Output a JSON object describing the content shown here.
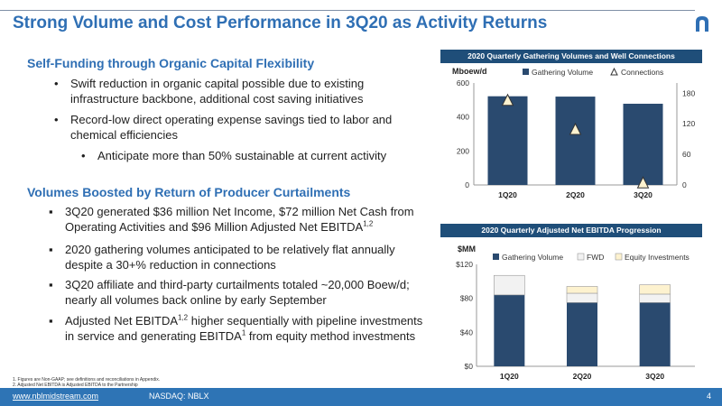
{
  "header": {
    "title": "Strong Volume and Cost Performance in 3Q20 as Activity Returns"
  },
  "section1": {
    "heading": "Self-Funding through Organic Capital Flexibility",
    "bullets": [
      "Swift reduction in organic capital possible due to existing infrastructure backbone, additional cost saving initiatives",
      "Record-low direct operating expense savings tied to labor and chemical efficiencies"
    ],
    "sub_bullet": "Anticipate more than 50% sustainable at current activity"
  },
  "section2": {
    "heading": "Volumes Boosted by Return of Producer Curtailments",
    "b1": {
      "text": "3Q20 generated $36 million Net Income, $72 million Net Cash from Operating Activities and $96 Million Adjusted Net EBITDA",
      "sup": "1,2"
    },
    "b2": {
      "text": "2020 gathering volumes anticipated to be relatively flat annually despite a 30+% reduction in connections"
    },
    "b3": {
      "text": "3Q20 affiliate and third-party curtailments totaled ~20,000 Boew/d; nearly all volumes back online by early September"
    },
    "b4": {
      "pre": "Adjusted Net EBITDA",
      "sup1": "1,2",
      "mid": " higher sequentially with pipeline investments in service and generating EBITDA",
      "sup2": "1",
      "post": " from equity method investments"
    }
  },
  "footnotes": [
    "1.      Figures are Non-GAAP; see definitions and reconciliations in Appendix.",
    "2.      Adjusted Net EBITDA is Adjusted EBITDA to the Partnership"
  ],
  "footer": {
    "url": "www.nblmidstream.com",
    "ticker": "NASDAQ: NBLX",
    "page": "4"
  },
  "colors": {
    "title": "#2f6fb4",
    "navy": "#2a4a6f",
    "header_bar": "#1f4e79",
    "fwd": "#f2f2f2",
    "equity": "#fdf2cf",
    "footer": "#2e74b5"
  },
  "chart_data": [
    {
      "type": "bar",
      "title": "2020 Quarterly Gathering Volumes and Well Connections",
      "ylabel": "Mboew/d",
      "categories": [
        "1Q20",
        "2Q20",
        "3Q20"
      ],
      "series": [
        {
          "name": "Gathering Volume",
          "type": "bar",
          "axis": "left",
          "values": [
            522,
            520,
            478
          ]
        },
        {
          "name": "Connections",
          "type": "scatter",
          "marker": "triangle",
          "axis": "right",
          "values": [
            165,
            108,
            3
          ]
        }
      ],
      "ylim": [
        0,
        600
      ],
      "yticks": [
        "0",
        "200",
        "400",
        "600"
      ],
      "y2lim": [
        0,
        200
      ],
      "y2ticks": [
        "0",
        "60",
        "120",
        "180"
      ],
      "legend": "top"
    },
    {
      "type": "bar",
      "stacked": true,
      "title": "2020 Quarterly Adjusted Net EBITDA Progression",
      "ylabel": "$MM",
      "categories": [
        "1Q20",
        "2Q20",
        "3Q20"
      ],
      "series": [
        {
          "name": "Gathering Volume",
          "values": [
            84,
            75,
            75
          ]
        },
        {
          "name": "FWD",
          "values": [
            23,
            11,
            10
          ]
        },
        {
          "name": "Equity Investments",
          "values": [
            0,
            8,
            11
          ]
        }
      ],
      "ylim": [
        0,
        120
      ],
      "yticks": [
        "$0",
        "$40",
        "$80",
        "$120"
      ],
      "legend": "top"
    }
  ]
}
